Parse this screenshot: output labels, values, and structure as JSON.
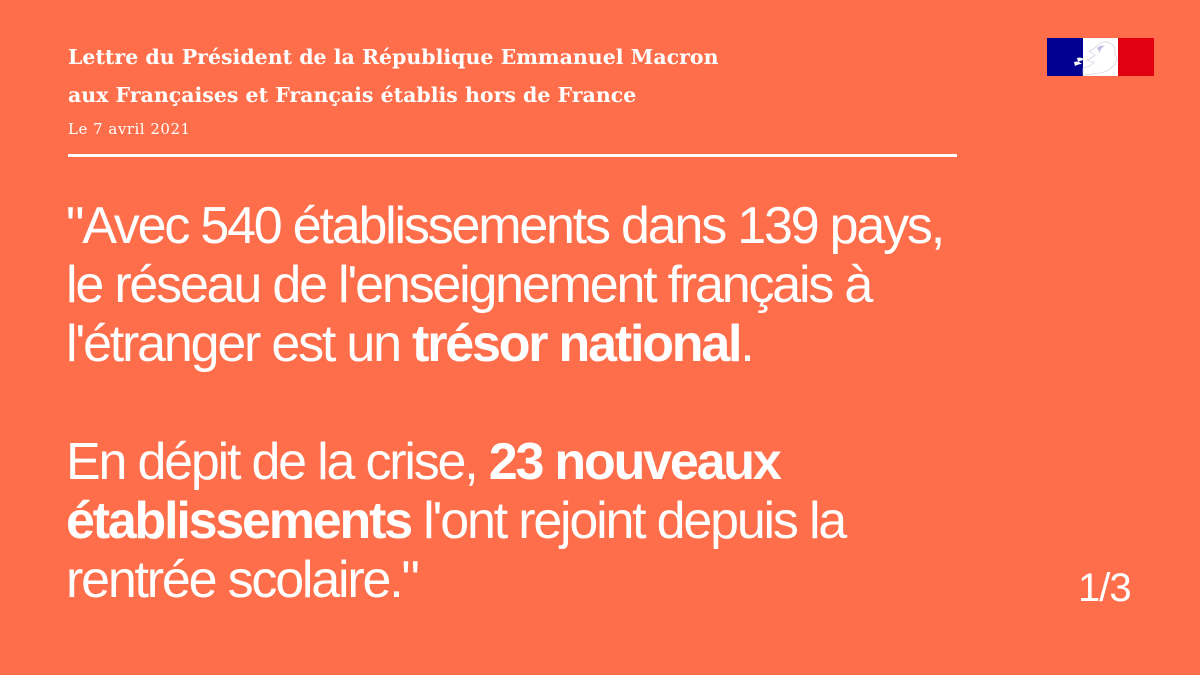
{
  "header": {
    "title_line1": "Lettre du Président de la République Emmanuel Macron",
    "title_line2": "aux Françaises et Français établis hors de France",
    "date": "Le 7 avril 2021"
  },
  "logo": {
    "icon": "marianne-logo-icon",
    "colors": [
      "#000091",
      "#ffffff",
      "#e1000f"
    ]
  },
  "quote": {
    "p1_line1": "\"Avec 540 établissements dans 139 pays,",
    "p1_line2": "le réseau de l'enseignement français à",
    "p1_line3_before": "l'étranger est un ",
    "p1_line3_bold": "trésor national",
    "p1_line3_after": ".",
    "p2_line1_before": "En dépit de la crise, ",
    "p2_line1_bold": "23 nouveaux",
    "p2_line2_bold": "établissements",
    "p2_line2_after": " l'ont rejoint depuis la",
    "p2_line3": "rentrée scolaire.\""
  },
  "page_indicator": "1/3",
  "colors": {
    "background": "#ff6e4a",
    "text": "#ffffff"
  }
}
